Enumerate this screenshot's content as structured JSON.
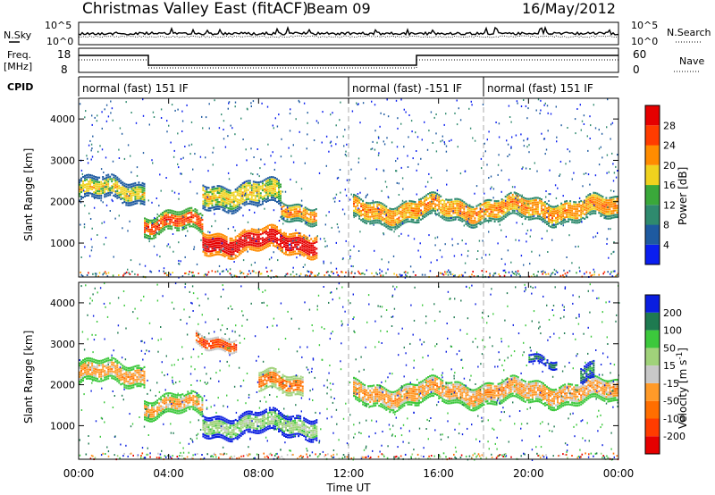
{
  "header": {
    "title": "Christmas Valley East (fitACF)",
    "beam": "Beam 09",
    "date": "16/May/2012"
  },
  "top_panel": {
    "left_label": "N.Sky",
    "left_ticks": [
      "10^5",
      "10^0"
    ],
    "right_ticks": [
      "10^5",
      "10^0"
    ],
    "right_label": "N.Search"
  },
  "freq_panel": {
    "left_label_1": "Freq.",
    "left_label_2": "[MHz]",
    "left_ticks": [
      "18",
      "8"
    ],
    "right_ticks": [
      "60",
      "0"
    ],
    "right_label": "Nave"
  },
  "cpid": {
    "label": "CPID",
    "segments": [
      {
        "start_hour": 0,
        "end_hour": 12,
        "text": "normal (fast) 151 IF"
      },
      {
        "start_hour": 12,
        "end_hour": 18,
        "text": "normal (fast) -151 IF"
      },
      {
        "start_hour": 18,
        "end_hour": 24,
        "text": "normal (fast) 151 IF"
      }
    ]
  },
  "axes": {
    "x_label": "Time UT",
    "x_ticks": [
      "00:00",
      "04:00",
      "08:00",
      "12:00",
      "16:00",
      "20:00",
      "00:00"
    ],
    "y_label": "Slant Range [km]",
    "y_ticks": [
      "1000",
      "2000",
      "3000",
      "4000"
    ]
  },
  "colorbars": {
    "power": {
      "label": "Power [dB]",
      "ticks": [
        "4",
        "8",
        "12",
        "16",
        "20",
        "24",
        "28"
      ],
      "colors": [
        "#0a1ef0",
        "#1e5aa0",
        "#2f8a6e",
        "#3aa83a",
        "#f0d21e",
        "#ff8c00",
        "#ff3c00",
        "#e60000"
      ]
    },
    "velocity": {
      "label_main": "Velocity [m s",
      "label_sup": "-1",
      "label_end": "]",
      "ticks": [
        "200",
        "100",
        "50",
        "15",
        "-15",
        "-50",
        "-100",
        "-200"
      ],
      "colors": [
        "#0a1ee0",
        "#1e7a50",
        "#3cc83c",
        "#a0d27a",
        "#c8c8c8",
        "#ff9a28",
        "#ff6e00",
        "#ff3c00",
        "#e60000"
      ]
    }
  },
  "chart_data": {
    "type": "heatmap",
    "x_range_hours": [
      0,
      24
    ],
    "y_range_km": [
      180,
      4500
    ],
    "power_bands": [
      {
        "x0": 0.0,
        "x1": 2.9,
        "y_center": 2300,
        "thickness": 500,
        "level": 3
      },
      {
        "x0": 2.9,
        "x1": 5.5,
        "y_center": 1500,
        "thickness": 450,
        "level": 5
      },
      {
        "x0": 5.5,
        "x1": 9.0,
        "y_center": 2200,
        "thickness": 600,
        "level": 3
      },
      {
        "x0": 5.5,
        "x1": 10.6,
        "y_center": 1050,
        "thickness": 500,
        "level": 7
      },
      {
        "x0": 9.0,
        "x1": 10.6,
        "y_center": 1800,
        "thickness": 400,
        "level": 4
      },
      {
        "x0": 12.2,
        "x1": 15.1,
        "y_center": 1800,
        "thickness": 550,
        "level": 4
      },
      {
        "x0": 15.1,
        "x1": 23.9,
        "y_center": 1850,
        "thickness": 550,
        "level": 4
      }
    ],
    "velocity_bands": [
      {
        "x0": 0.0,
        "x1": 2.9,
        "y_center": 2300,
        "thickness": 500,
        "level": 4
      },
      {
        "x0": 2.9,
        "x1": 5.5,
        "y_center": 1500,
        "thickness": 450,
        "level": 4
      },
      {
        "x0": 5.5,
        "x1": 10.6,
        "y_center": 1050,
        "thickness": 500,
        "level": 2
      },
      {
        "x0": 8.0,
        "x1": 10.0,
        "y_center": 2050,
        "thickness": 450,
        "level": 5
      },
      {
        "x0": 5.2,
        "x1": 7.0,
        "y_center": 3100,
        "thickness": 300,
        "level": 6
      },
      {
        "x0": 12.2,
        "x1": 15.1,
        "y_center": 1800,
        "thickness": 550,
        "level": 4
      },
      {
        "x0": 15.1,
        "x1": 23.9,
        "y_center": 1850,
        "thickness": 550,
        "level": 4
      },
      {
        "x0": 20.0,
        "x1": 21.2,
        "y_center": 2650,
        "thickness": 180,
        "level": 0
      },
      {
        "x0": 22.3,
        "x1": 22.9,
        "y_center": 2250,
        "thickness": 400,
        "level": 0
      }
    ]
  }
}
